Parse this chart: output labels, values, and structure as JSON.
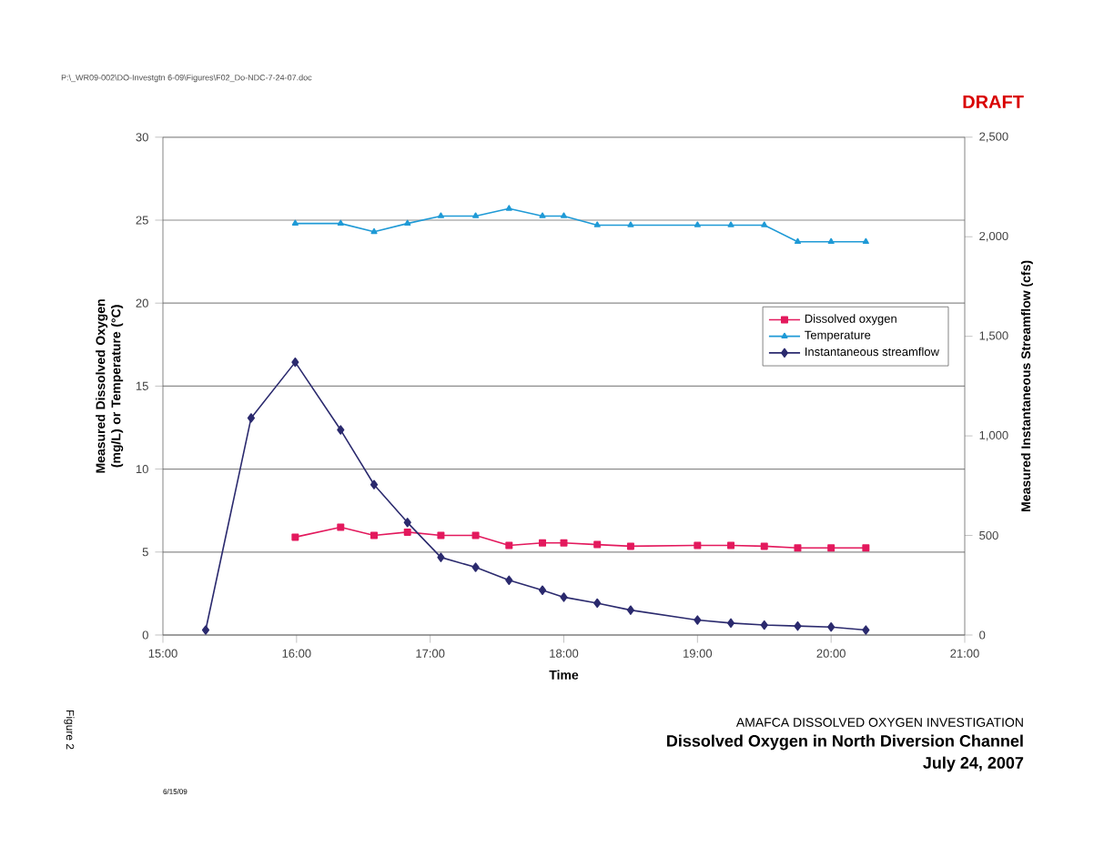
{
  "chart_data": {
    "type": "line",
    "title": "Dissolved Oxygen in North Diversion Channel",
    "subtitle": "AMAFCA DISSOLVED OXYGEN INVESTIGATION",
    "xlabel": "Time",
    "ylabel": "Measured Dissolved Oxygen (mg/L) or Temperature (°C)",
    "y2label": "Measured Instantaneous Streamflow (cfs)",
    "annotations": [
      "P:\\_WR09-002\\DO-Investgtn 6-09\\Figures\\F02_Do-NDC-7-24-07.doc",
      "DRAFT",
      "July 24, 2007",
      "Figure 2",
      "6/15/09"
    ],
    "series": [
      {
        "name": "Dissolved oxygen",
        "color": "#e3195d",
        "marker": "square",
        "x": [
          15.99,
          16.33,
          16.58,
          16.83,
          17.08,
          17.34,
          17.59,
          17.84,
          18.0,
          18.25,
          18.5,
          19.0,
          19.25,
          19.5,
          19.75,
          20.0,
          20.26
        ],
        "values": [
          5.9,
          6.5,
          6.0,
          6.2,
          6.0,
          6.0,
          5.4,
          5.55,
          5.55,
          5.45,
          5.35,
          5.4,
          5.4,
          5.35,
          5.25,
          5.25,
          5.25
        ]
      },
      {
        "name": "Temperature",
        "color": "#1f9ad6",
        "marker": "triangle",
        "x": [
          15.99,
          16.33,
          16.58,
          16.83,
          17.08,
          17.34,
          17.59,
          17.84,
          18.0,
          18.25,
          18.5,
          19.0,
          19.25,
          19.5,
          19.75,
          20.0,
          20.26
        ],
        "values": [
          24.8,
          24.8,
          24.3,
          24.8,
          25.25,
          25.25,
          25.7,
          25.25,
          25.25,
          24.7,
          24.7,
          24.7,
          24.7,
          24.7,
          23.7,
          23.7,
          23.7
        ]
      },
      {
        "name": "Instantaneous streamflow",
        "color": "#2b2a6e",
        "marker": "diamond",
        "axis": "y2",
        "x": [
          15.32,
          15.66,
          15.99,
          16.33,
          16.58,
          16.83,
          17.08,
          17.34,
          17.59,
          17.84,
          18.0,
          18.25,
          18.5,
          19.0,
          19.25,
          19.5,
          19.75,
          20.0,
          20.26
        ],
        "values": [
          25,
          1090,
          1370,
          1030,
          755,
          565,
          390,
          340,
          275,
          225,
          190,
          160,
          125,
          75,
          60,
          50,
          45,
          40,
          25
        ]
      }
    ],
    "xlim": [
      15,
      21
    ],
    "xticks": [
      {
        "value": 15,
        "label": "15:00"
      },
      {
        "value": 16,
        "label": "16:00"
      },
      {
        "value": 17,
        "label": "17:00"
      },
      {
        "value": 18,
        "label": "18:00"
      },
      {
        "value": 19,
        "label": "19:00"
      },
      {
        "value": 20,
        "label": "20:00"
      },
      {
        "value": 21,
        "label": "21:00"
      }
    ],
    "ylim": [
      0,
      30
    ],
    "yticks": [
      0,
      5,
      10,
      15,
      20,
      25,
      30
    ],
    "y2lim": [
      0,
      2500
    ],
    "y2ticks": [
      0,
      {
        "value": 500,
        "label": "500"
      },
      {
        "value": 1000,
        "label": "1,000"
      },
      {
        "value": 1500,
        "label": "1,500"
      },
      {
        "value": 2000,
        "label": "2,000"
      },
      {
        "value": 2500,
        "label": "2,500"
      }
    ],
    "grid": "y",
    "legend": "right",
    "line_style": "solid"
  }
}
